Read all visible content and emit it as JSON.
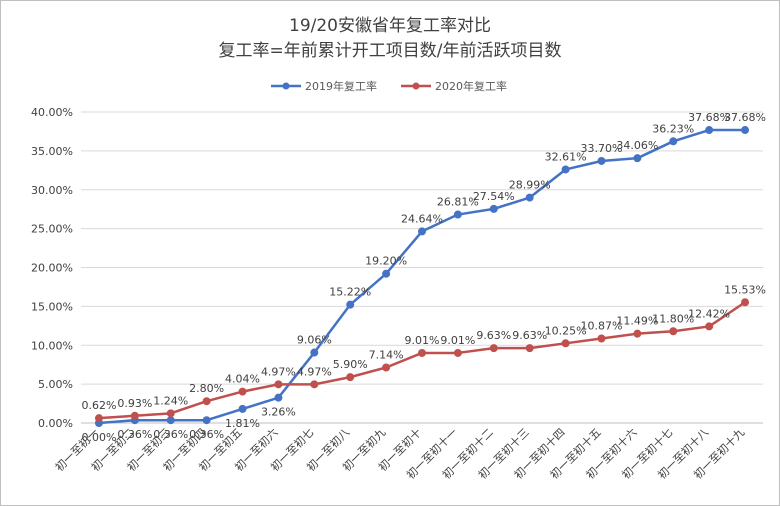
{
  "chart_data": {
    "type": "line",
    "title": "19/20安徽省年复工率对比",
    "subtitle": "复工率=年前累计开工项目数/年前活跃项目数",
    "legend_position": "top",
    "grid": true,
    "ylim": [
      0,
      40
    ],
    "y_ticks": [
      "0.00%",
      "5.00%",
      "10.00%",
      "15.00%",
      "20.00%",
      "25.00%",
      "30.00%",
      "35.00%",
      "40.00%"
    ],
    "categories": [
      "初一至初一",
      "初一至初二",
      "初一至初三",
      "初一至初四",
      "初一至初五",
      "初一至初六",
      "初一至初七",
      "初一至初八",
      "初一至初九",
      "初一至初十",
      "初一至初十一",
      "初一至初十二",
      "初一至初十三",
      "初一至初十四",
      "初一至初十五",
      "初一至初十六",
      "初一至初十七",
      "初一至初十八",
      "初一至初十九"
    ],
    "series": [
      {
        "name": "2019年复工率",
        "color": "#4472c4",
        "values": [
          0.0,
          0.36,
          0.36,
          0.36,
          1.81,
          3.26,
          9.06,
          15.22,
          19.2,
          24.64,
          26.81,
          27.54,
          28.99,
          32.61,
          33.7,
          34.06,
          36.23,
          37.68,
          37.68
        ],
        "labels": [
          "0.00%",
          "0.36%",
          "0.36%",
          "0.36%",
          "1.81%",
          "3.26%",
          "9.06%",
          "15.22%",
          "19.20%",
          "24.64%",
          "26.81%",
          "27.54%",
          "28.99%",
          "32.61%",
          "33.70%",
          "34.06%",
          "36.23%",
          "37.68%",
          "37.68%"
        ]
      },
      {
        "name": "2020年复工率",
        "color": "#c0504d",
        "values": [
          0.62,
          0.93,
          1.24,
          2.8,
          4.04,
          4.97,
          4.97,
          5.9,
          7.14,
          9.01,
          9.01,
          9.63,
          9.63,
          10.25,
          10.87,
          11.49,
          11.8,
          12.42,
          15.53
        ],
        "labels": [
          "0.62%",
          "0.93%",
          "1.24%",
          "2.80%",
          "4.04%",
          "4.97%",
          "4.97%",
          "5.90%",
          "7.14%",
          "9.01%",
          "9.01%",
          "9.63%",
          "9.63%",
          "10.25%",
          "10.87%",
          "11.49%",
          "11.80%",
          "12.42%",
          "15.53%"
        ]
      }
    ]
  }
}
